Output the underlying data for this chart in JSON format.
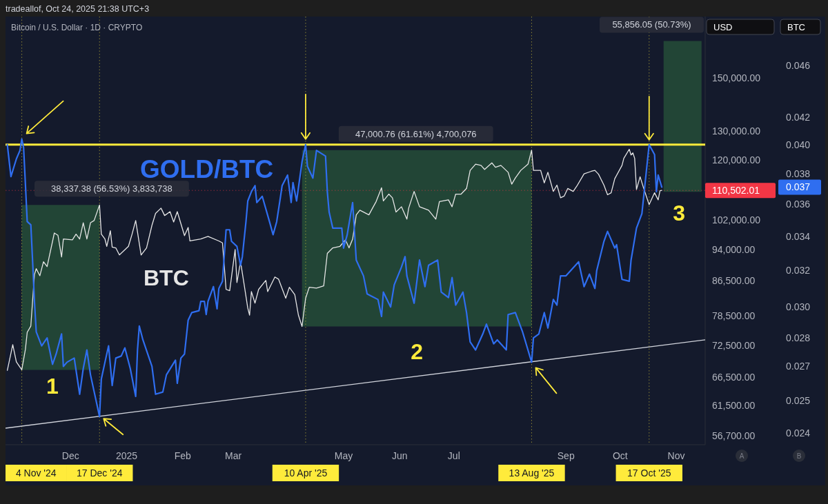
{
  "chart_data": [
    {
      "type": "line",
      "title": "Bitcoin / U.S. Dollar · 1D · CRYPTO",
      "ylabel": "USD",
      "xlim": [
        "2024-10-26",
        "2025-11-17"
      ],
      "xticks": [
        {
          "value": "2024-12-01",
          "label": "Dec"
        },
        {
          "value": "2025-01-01",
          "label": "2025"
        },
        {
          "value": "2025-02-01",
          "label": "Feb"
        },
        {
          "value": "2025-03-01",
          "label": "Mar"
        },
        {
          "value": "2025-05-01",
          "label": "May"
        },
        {
          "value": "2025-06-01",
          "label": "Jun"
        },
        {
          "value": "2025-07-01",
          "label": "Jul"
        },
        {
          "value": "2025-09-01",
          "label": "Sep"
        },
        {
          "value": "2025-10-01",
          "label": "Oct"
        },
        {
          "value": "2025-11-01",
          "label": "Nov"
        }
      ],
      "ylim": [
        55300,
        177400
      ],
      "yticks": [
        {
          "value": 56700,
          "label": "56,700.00"
        },
        {
          "value": 61500,
          "label": "61,500.00"
        },
        {
          "value": 66500,
          "label": "66,500.00"
        },
        {
          "value": 72500,
          "label": "72,500.00"
        },
        {
          "value": 78500,
          "label": "78,500.00"
        },
        {
          "value": 86500,
          "label": "86,500.00"
        },
        {
          "value": 94000,
          "label": "94,000.00"
        },
        {
          "value": 102000,
          "label": "102,000.00"
        },
        {
          "value": 120000,
          "label": "120,000.00"
        },
        {
          "value": 130000,
          "label": "130,000.00"
        },
        {
          "value": 150000,
          "label": "150,000.00"
        }
      ],
      "log": "y",
      "ref_lines": [
        {
          "axis": "x",
          "value": "2024-11-04",
          "label": "4 Nov '24",
          "color": "#ffeb3b",
          "line_style": "dotted"
        },
        {
          "axis": "x",
          "value": "2024-12-17",
          "label": "17 Dec '24",
          "color": "#ffeb3b",
          "line_style": "dotted"
        },
        {
          "axis": "x",
          "value": "2025-04-10",
          "label": "10 Apr '25",
          "color": "#ffeb3b",
          "line_style": "dotted"
        },
        {
          "axis": "x",
          "value": "2025-08-13",
          "label": "13 Aug '25",
          "color": "#ffeb3b",
          "line_style": "dotted"
        },
        {
          "axis": "x",
          "value": "2025-10-17",
          "label": "17 Oct '25",
          "color": "#ffeb3b",
          "line_style": "dotted"
        },
        {
          "axis": "y",
          "value": 110502.01,
          "label": "110,502.01",
          "color": "#f23645",
          "line_style": "dotted"
        }
      ],
      "annotations": [
        "tradeallof, Oct 24, 2025 21:38 UTC+3",
        "A",
        "B",
        "55,856.05 (50.73%)",
        "1",
        "2",
        "3",
        {
          "text": "38,337.38 (56.53%) 3,833,738",
          "x": "2024-11-26",
          "y": 106200
        },
        {
          "text": "47,000.76 (61.61%) 4,700,076",
          "x": "2025-06-10",
          "y": 123300
        }
      ],
      "series": [
        {
          "type": "area",
          "x": [
            "2024-11-04",
            "2024-12-17"
          ],
          "values": [
            null,
            null
          ],
          "lower": [
            67800,
            67800
          ],
          "upper": [
            106200,
            106200
          ],
          "color": "#224536"
        },
        {
          "type": "area",
          "x": [
            "2025-04-08",
            "2025-08-13"
          ],
          "values": [
            null,
            null
          ],
          "lower": [
            76300,
            76300
          ],
          "upper": [
            123300,
            123300
          ],
          "color": "#224536"
        },
        {
          "type": "area",
          "x": [
            "2025-10-25",
            "2025-11-15"
          ],
          "values": [
            null,
            null
          ],
          "lower": [
            110100,
            110100
          ],
          "upper": [
            166000,
            166000
          ],
          "color": "#224536"
        },
        {
          "type": "line",
          "name": "BTC",
          "color": "#e6e6e6",
          "x": [
            "2024-10-27",
            "2024-10-30",
            "2024-11-01",
            "2024-11-04",
            "2024-11-06",
            "2024-11-07",
            "2024-11-09",
            "2024-11-11",
            "2024-11-12",
            "2024-11-14",
            "2024-11-16",
            "2024-11-18",
            "2024-11-22",
            "2024-11-24",
            "2024-11-26",
            "2024-11-27",
            "2024-12-02",
            "2024-12-04",
            "2024-12-06",
            "2024-12-08",
            "2024-12-10",
            "2024-12-12",
            "2024-12-14",
            "2024-12-17",
            "2024-12-18",
            "2024-12-20",
            "2024-12-21",
            "2024-12-23",
            "2024-12-24",
            "2024-12-26",
            "2024-12-28",
            "2025-01-02",
            "2025-01-04",
            "2025-01-06",
            "2025-01-09",
            "2025-01-12",
            "2025-01-15",
            "2025-01-17",
            "2025-01-20",
            "2025-01-22",
            "2025-01-25",
            "2025-01-27",
            "2025-01-29",
            "2025-02-02",
            "2025-02-04",
            "2025-02-05",
            "2025-02-11",
            "2025-02-15",
            "2025-02-21",
            "2025-02-23",
            "2025-02-25",
            "2025-02-27",
            "2025-03-02",
            "2025-03-03",
            "2025-03-05",
            "2025-03-07",
            "2025-03-09",
            "2025-03-10",
            "2025-03-11",
            "2025-03-13",
            "2025-03-15",
            "2025-03-19",
            "2025-03-20",
            "2025-03-24",
            "2025-03-26",
            "2025-03-30",
            "2025-04-01",
            "2025-04-04",
            "2025-04-06",
            "2025-04-08",
            "2025-04-10",
            "2025-04-12",
            "2025-04-16",
            "2025-04-20",
            "2025-04-22",
            "2025-04-25",
            "2025-04-29",
            "2025-05-02",
            "2025-05-04",
            "2025-05-06",
            "2025-05-08",
            "2025-05-10",
            "2025-05-15",
            "2025-05-17",
            "2025-05-19",
            "2025-05-22",
            "2025-05-23",
            "2025-05-26",
            "2025-05-28",
            "2025-05-30",
            "2025-06-02",
            "2025-06-05",
            "2025-06-06",
            "2025-06-09",
            "2025-06-12",
            "2025-06-17",
            "2025-06-21",
            "2025-06-23",
            "2025-06-28",
            "2025-06-30",
            "2025-07-02",
            "2025-07-05",
            "2025-07-08",
            "2025-07-10",
            "2025-07-13",
            "2025-07-16",
            "2025-07-18",
            "2025-07-22",
            "2025-07-24",
            "2025-07-27",
            "2025-07-31",
            "2025-08-02",
            "2025-08-04",
            "2025-08-07",
            "2025-08-11",
            "2025-08-13",
            "2025-08-14",
            "2025-08-18",
            "2025-08-20",
            "2025-08-22",
            "2025-08-25",
            "2025-08-27",
            "2025-08-29",
            "2025-08-31",
            "2025-09-02",
            "2025-09-05",
            "2025-09-07",
            "2025-09-11",
            "2025-09-15",
            "2025-09-17",
            "2025-09-19",
            "2025-09-22",
            "2025-09-24",
            "2025-09-26",
            "2025-09-28",
            "2025-10-02",
            "2025-10-03",
            "2025-10-06",
            "2025-10-07",
            "2025-10-08",
            "2025-10-09",
            "2025-10-10",
            "2025-10-12",
            "2025-10-14",
            "2025-10-17",
            "2025-10-20",
            "2025-10-22",
            "2025-10-23",
            "2025-10-24"
          ],
          "values": [
            67700,
            72600,
            69300,
            67800,
            71700,
            75100,
            76400,
            87900,
            89300,
            87600,
            91000,
            89800,
            98400,
            97800,
            92200,
            96800,
            96600,
            98100,
            96800,
            101200,
            96800,
            101200,
            101800,
            106200,
            98100,
            96800,
            94900,
            99000,
            94700,
            94500,
            92700,
            94900,
            98100,
            101800,
            92700,
            94500,
            100500,
            103800,
            105300,
            103200,
            104300,
            101400,
            104300,
            97700,
            99900,
            96300,
            96800,
            97500,
            96300,
            95800,
            84400,
            84100,
            94100,
            86000,
            91000,
            85500,
            80200,
            78700,
            83900,
            81300,
            84400,
            86500,
            83900,
            87300,
            86800,
            82400,
            84900,
            83200,
            78700,
            76300,
            82400,
            84900,
            84700,
            85200,
            93100,
            94500,
            94900,
            96600,
            94500,
            96800,
            103400,
            104700,
            103400,
            105300,
            107200,
            111300,
            107400,
            109400,
            108300,
            104200,
            105700,
            102200,
            105300,
            110200,
            105700,
            104700,
            102200,
            107200,
            107700,
            105700,
            109400,
            109400,
            111100,
            116700,
            118700,
            118300,
            117000,
            119100,
            117700,
            118300,
            116100,
            112400,
            114300,
            116700,
            118700,
            123300,
            116700,
            116700,
            112800,
            116100,
            110200,
            112100,
            108300,
            108800,
            111100,
            110200,
            111800,
            115600,
            116400,
            116700,
            115500,
            112100,
            109200,
            109800,
            114100,
            118300,
            120600,
            123600,
            121700,
            122400,
            120600,
            110800,
            114700,
            111100,
            106300,
            109800,
            107700,
            110400,
            110500
          ]
        }
      ]
    },
    {
      "type": "line",
      "ylabel": "BTC",
      "tick_labels": "y",
      "xlim": [
        "2024-10-26",
        "2025-11-17"
      ],
      "ylim": [
        0.0235,
        0.0502
      ],
      "yticks": [
        0.024,
        {
          "value": 0.0254,
          "label": "0.025"
        },
        0.027,
        {
          "value": 0.0284,
          "label": "0.028"
        },
        {
          "value": 0.03,
          "label": "0.030"
        },
        0.032,
        0.034,
        0.036,
        0.038,
        {
          "value": 0.04,
          "label": "0.040"
        },
        0.042,
        0.046
      ],
      "log": "y",
      "ref_lines": [
        {
          "axis": "y",
          "value": 0.04,
          "color": "#ffeb3b",
          "line_style": "solid"
        }
      ],
      "annotations": [
        "0.037"
      ],
      "series": [
        {
          "type": "line",
          "x": [
            "2024-10-26",
            "2025-11-17"
          ],
          "values": [
            0.0242,
            0.0283
          ],
          "color": "#d1d4dc"
        },
        {
          "type": "line",
          "name": "GOLD/BTC",
          "color": "#2f6ef0",
          "x": [
            "2024-10-27",
            "2024-10-29",
            "2024-11-01",
            "2024-11-03",
            "2024-11-04",
            "2024-11-05",
            "2024-11-06",
            "2024-11-07",
            "2024-11-09",
            "2024-11-10",
            "2024-11-11",
            "2024-11-12",
            "2024-11-15",
            "2024-11-18",
            "2024-11-21",
            "2024-11-23",
            "2024-11-26",
            "2024-11-27",
            "2024-11-29",
            "2024-12-03",
            "2024-12-06",
            "2024-12-08",
            "2024-12-10",
            "2024-12-12",
            "2024-12-17",
            "2024-12-18",
            "2024-12-20",
            "2024-12-22",
            "2024-12-24",
            "2024-12-26",
            "2024-12-29",
            "2024-12-31",
            "2025-01-03",
            "2025-01-06",
            "2025-01-07",
            "2025-01-08",
            "2025-01-10",
            "2025-01-15",
            "2025-01-17",
            "2025-01-21",
            "2025-01-23",
            "2025-01-28",
            "2025-01-29",
            "2025-01-31",
            "2025-02-02",
            "2025-02-04",
            "2025-02-06",
            "2025-02-10",
            "2025-02-11",
            "2025-02-13",
            "2025-02-14",
            "2025-02-15",
            "2025-02-18",
            "2025-02-20",
            "2025-02-21",
            "2025-02-23",
            "2025-02-25",
            "2025-02-27",
            "2025-02-28",
            "2025-03-03",
            "2025-03-05",
            "2025-03-06",
            "2025-03-08",
            "2025-03-09",
            "2025-03-11",
            "2025-03-13",
            "2025-03-14",
            "2025-03-17",
            "2025-03-21",
            "2025-03-23",
            "2025-03-25",
            "2025-03-27",
            "2025-03-28",
            "2025-03-31",
            "2025-04-02",
            "2025-04-03",
            "2025-04-05",
            "2025-04-08",
            "2025-04-10",
            "2025-04-11",
            "2025-04-14",
            "2025-04-16",
            "2025-04-21",
            "2025-04-22",
            "2025-04-23",
            "2025-04-25",
            "2025-04-30",
            "2025-05-01",
            "2025-05-03",
            "2025-05-06",
            "2025-05-08",
            "2025-05-12",
            "2025-05-14",
            "2025-05-16",
            "2025-05-20",
            "2025-05-22",
            "2025-05-23",
            "2025-05-27",
            "2025-05-29",
            "2025-06-02",
            "2025-06-04",
            "2025-06-05",
            "2025-06-09",
            "2025-06-12",
            "2025-06-15",
            "2025-06-17",
            "2025-06-22",
            "2025-06-24",
            "2025-06-28",
            "2025-06-30",
            "2025-07-02",
            "2025-07-06",
            "2025-07-08",
            "2025-07-10",
            "2025-07-13",
            "2025-07-17",
            "2025-07-19",
            "2025-07-23",
            "2025-07-25",
            "2025-07-30",
            "2025-07-31",
            "2025-08-04",
            "2025-08-08",
            "2025-08-13",
            "2025-08-14",
            "2025-08-17",
            "2025-08-20",
            "2025-08-22",
            "2025-08-25",
            "2025-08-27",
            "2025-08-29",
            "2025-09-01",
            "2025-09-08",
            "2025-09-11",
            "2025-09-14",
            "2025-09-17",
            "2025-09-18",
            "2025-09-22",
            "2025-09-24",
            "2025-09-28",
            "2025-09-29",
            "2025-10-02",
            "2025-10-06",
            "2025-10-07",
            "2025-10-10",
            "2025-10-13",
            "2025-10-17",
            "2025-10-20",
            "2025-10-21",
            "2025-10-22",
            "2025-10-24"
          ],
          "values": [
            0.04,
            0.0378,
            0.039,
            0.0396,
            0.0404,
            0.0398,
            0.0373,
            0.0349,
            0.0347,
            0.0325,
            0.0303,
            0.0287,
            0.028,
            0.0284,
            0.0271,
            0.0276,
            0.0286,
            0.027,
            0.0272,
            0.0274,
            0.0257,
            0.0269,
            0.0278,
            0.0266,
            0.0247,
            0.0264,
            0.0272,
            0.028,
            0.0261,
            0.0274,
            0.0275,
            0.0279,
            0.0269,
            0.0256,
            0.0278,
            0.029,
            0.0283,
            0.027,
            0.0257,
            0.0258,
            0.0266,
            0.0273,
            0.0262,
            0.0274,
            0.0276,
            0.0293,
            0.0297,
            0.0298,
            0.0303,
            0.0303,
            0.0296,
            0.0303,
            0.0311,
            0.0299,
            0.031,
            0.0314,
            0.0344,
            0.0344,
            0.0337,
            0.0334,
            0.0323,
            0.0328,
            0.0349,
            0.0362,
            0.0368,
            0.0372,
            0.0361,
            0.0365,
            0.0349,
            0.0341,
            0.0349,
            0.0364,
            0.0372,
            0.0379,
            0.0361,
            0.0374,
            0.0362,
            0.0388,
            0.04,
            0.0385,
            0.0377,
            0.0396,
            0.0392,
            0.0368,
            0.0355,
            0.0345,
            0.0345,
            0.0333,
            0.0341,
            0.0361,
            0.0326,
            0.0317,
            0.0307,
            0.0306,
            0.0304,
            0.0295,
            0.0308,
            0.03,
            0.0312,
            0.0322,
            0.0328,
            0.0317,
            0.0302,
            0.0326,
            0.0311,
            0.0323,
            0.0326,
            0.0308,
            0.0305,
            0.0316,
            0.0301,
            0.0308,
            0.0297,
            0.0282,
            0.0278,
            0.0286,
            0.0291,
            0.0281,
            0.0283,
            0.0278,
            0.0296,
            0.0297,
            0.0287,
            0.0272,
            0.0284,
            0.0286,
            0.0297,
            0.0289,
            0.0304,
            0.0301,
            0.0317,
            0.0317,
            0.0325,
            0.0311,
            0.0318,
            0.031,
            0.032,
            0.0337,
            0.0343,
            0.0333,
            0.0335,
            0.0315,
            0.0314,
            0.0326,
            0.0345,
            0.0354,
            0.04,
            0.0393,
            0.0368,
            0.0379,
            0.0371
          ]
        }
      ]
    }
  ]
}
